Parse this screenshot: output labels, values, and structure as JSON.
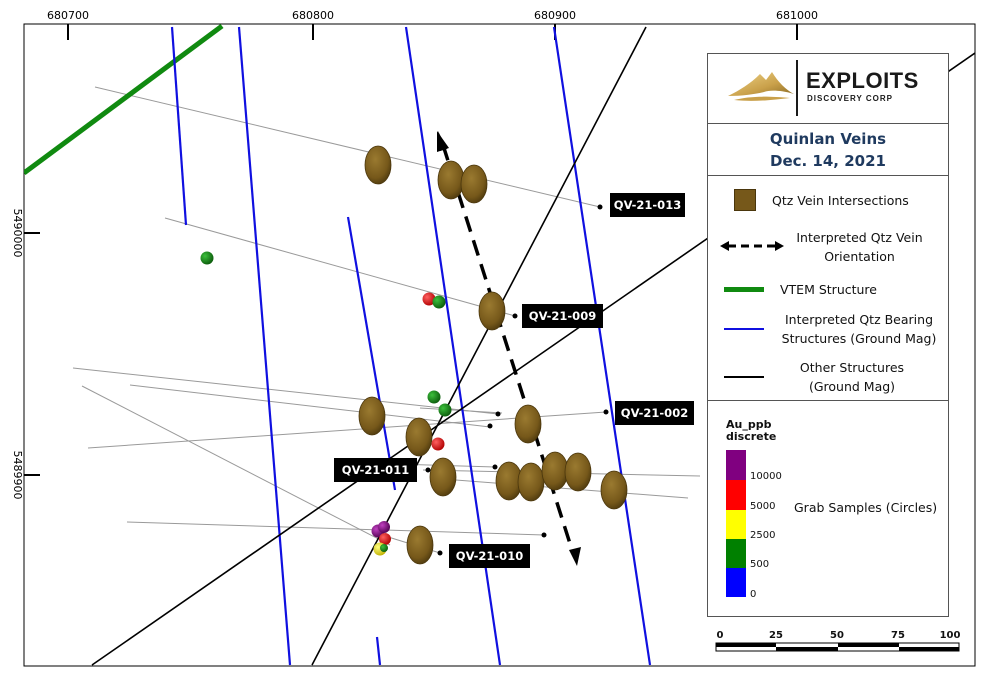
{
  "map": {
    "x_ticks": [
      "680700",
      "680800",
      "680900",
      "681000"
    ],
    "y_ticks": [
      "5490000",
      "5489900"
    ],
    "drill_holes": [
      {
        "id": "QV-21-013",
        "label": "QV-21-013"
      },
      {
        "id": "QV-21-009",
        "label": "QV-21-009"
      },
      {
        "id": "QV-21-002",
        "label": "QV-21-002"
      },
      {
        "id": "QV-21-011",
        "label": "QV-21-011"
      },
      {
        "id": "QV-21-010",
        "label": "QV-21-010"
      }
    ]
  },
  "legend": {
    "brand_name": "EXPLOITS",
    "brand_sub": "DISCOVERY CORP",
    "title_line1": "Quinlan Veins",
    "title_line2": "Dec. 14, 2021",
    "items": {
      "qtz_vein": "Qtz Vein Intersections",
      "interp_orient_1": "Interpreted  Qtz Vein",
      "interp_orient_2": "Orientation",
      "vtem": "VTEM Structure",
      "qtz_bearing_1": "Interpreted Qtz Bearing",
      "qtz_bearing_2": "Structures (Ground Mag)",
      "other_1": "Other Structures",
      "other_2": "(Ground Mag)"
    },
    "au": {
      "title_1": "Au_ppb",
      "title_2": "discrete",
      "classes": [
        {
          "label": "10000",
          "color": "#800080"
        },
        {
          "label": "5000",
          "color": "#ff0000"
        },
        {
          "label": "2500",
          "color": "#ffff00"
        },
        {
          "label": "500",
          "color": "#008000"
        },
        {
          "label": "0",
          "color": "#0000ff"
        }
      ],
      "grab_text": "Grab Samples (Circles)"
    }
  },
  "scale_bar": {
    "labels": [
      "0",
      "25",
      "50",
      "75",
      "100"
    ]
  },
  "colors": {
    "vein": "#7a5a14",
    "vtem": "#108a10",
    "mag_blue": "#1010e0",
    "other_black": "#000000",
    "trace_gray": "#999999",
    "title_blue": "#1f3a5f"
  }
}
